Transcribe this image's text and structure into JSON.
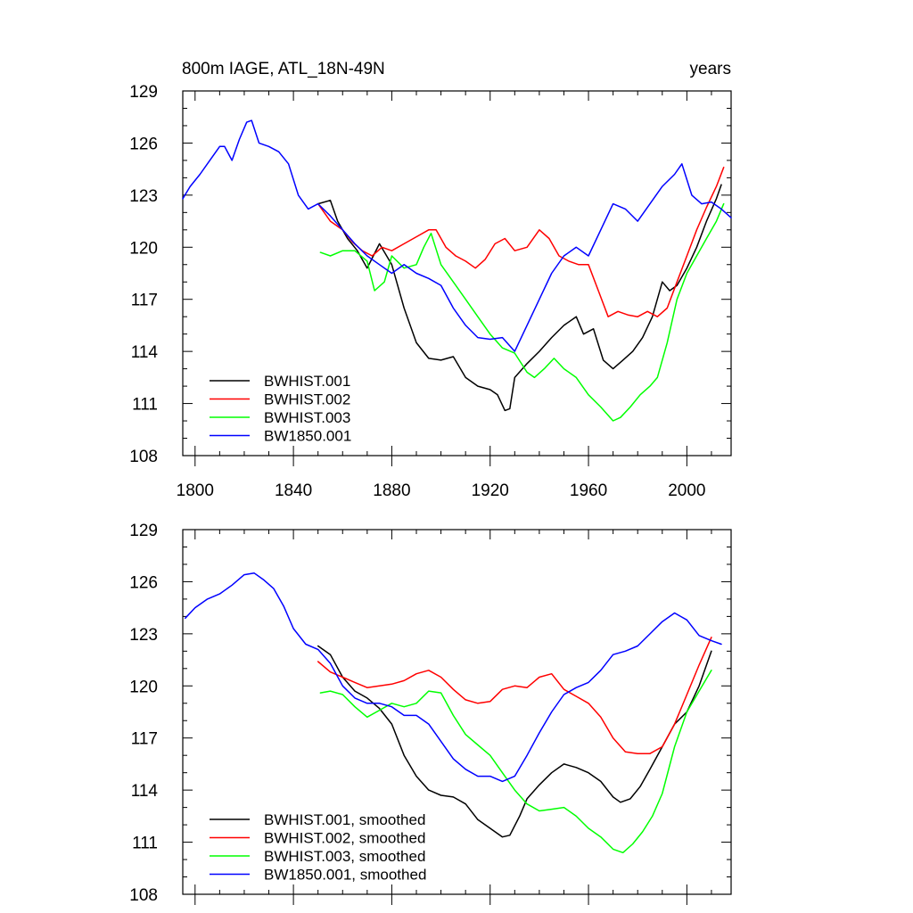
{
  "chart_data": [
    {
      "type": "line",
      "title": "800m IAGE, ATL_18N-49N",
      "units": "years",
      "xlim": [
        1795,
        2018
      ],
      "ylim": [
        108,
        129
      ],
      "xticks": [
        1800,
        1840,
        1880,
        1920,
        1960,
        2000
      ],
      "yticks": [
        108,
        111,
        114,
        117,
        120,
        123,
        126,
        129
      ],
      "legend_position": "lower-left",
      "series": [
        {
          "name": "BWHIST.001",
          "color": "#000000",
          "x": [
            1850,
            1855,
            1858,
            1862,
            1866,
            1870,
            1875,
            1880,
            1885,
            1890,
            1895,
            1900,
            1905,
            1910,
            1915,
            1920,
            1923,
            1926,
            1928,
            1930,
            1935,
            1940,
            1945,
            1950,
            1955,
            1958,
            1962,
            1966,
            1970,
            1974,
            1978,
            1982,
            1986,
            1990,
            1993,
            1996,
            2000,
            2004,
            2008,
            2012,
            2014
          ],
          "y": [
            122.5,
            122.7,
            121.5,
            120.5,
            119.8,
            118.8,
            120.2,
            119.0,
            116.5,
            114.5,
            113.6,
            113.5,
            113.7,
            112.5,
            112.0,
            111.8,
            111.5,
            110.6,
            110.7,
            112.5,
            113.3,
            114.0,
            114.8,
            115.5,
            116.0,
            115.0,
            115.3,
            113.5,
            113.0,
            113.5,
            114.0,
            114.8,
            116.0,
            118.0,
            117.5,
            117.8,
            118.8,
            120.0,
            121.5,
            122.8,
            123.6
          ]
        },
        {
          "name": "BWHIST.002",
          "color": "#ff0000",
          "x": [
            1850,
            1855,
            1860,
            1864,
            1868,
            1872,
            1876,
            1880,
            1885,
            1890,
            1895,
            1898,
            1902,
            1906,
            1910,
            1914,
            1918,
            1922,
            1926,
            1930,
            1935,
            1940,
            1944,
            1948,
            1952,
            1956,
            1960,
            1964,
            1968,
            1972,
            1976,
            1980,
            1984,
            1988,
            1992,
            1996,
            2000,
            2004,
            2008,
            2012,
            2015
          ],
          "y": [
            122.5,
            121.5,
            121.0,
            120.3,
            119.8,
            119.5,
            120.0,
            119.8,
            120.2,
            120.6,
            121.0,
            121.0,
            120.0,
            119.5,
            119.2,
            118.8,
            119.3,
            120.2,
            120.5,
            119.8,
            120.0,
            121.0,
            120.5,
            119.5,
            119.2,
            119.0,
            119.0,
            117.5,
            116.0,
            116.3,
            116.1,
            116.0,
            116.3,
            116.0,
            116.5,
            118.0,
            119.5,
            121.0,
            122.3,
            123.5,
            124.6
          ]
        },
        {
          "name": "BWHIST.003",
          "color": "#00ff00",
          "x": [
            1851,
            1855,
            1860,
            1865,
            1870,
            1873,
            1877,
            1880,
            1885,
            1890,
            1893,
            1896,
            1900,
            1905,
            1910,
            1915,
            1920,
            1925,
            1930,
            1935,
            1938,
            1942,
            1946,
            1950,
            1955,
            1960,
            1965,
            1970,
            1973,
            1977,
            1981,
            1985,
            1988,
            1992,
            1996,
            2000,
            2004,
            2008,
            2012,
            2015
          ],
          "y": [
            119.7,
            119.5,
            119.8,
            119.8,
            119.2,
            117.5,
            118.0,
            119.5,
            118.8,
            119.0,
            120.0,
            120.8,
            119.0,
            118.0,
            117.0,
            116.0,
            115.0,
            114.2,
            113.9,
            112.8,
            112.5,
            113.0,
            113.6,
            113.0,
            112.5,
            111.5,
            110.8,
            110.0,
            110.2,
            110.8,
            111.5,
            112.0,
            112.5,
            114.5,
            117.0,
            118.5,
            119.5,
            120.5,
            121.5,
            122.5
          ]
        },
        {
          "name": "BW1850.001",
          "color": "#0000ff",
          "x": [
            1795,
            1798,
            1802,
            1806,
            1810,
            1812,
            1815,
            1818,
            1821,
            1823,
            1826,
            1830,
            1834,
            1838,
            1842,
            1846,
            1850,
            1855,
            1860,
            1865,
            1870,
            1875,
            1880,
            1885,
            1890,
            1895,
            1900,
            1905,
            1910,
            1915,
            1920,
            1925,
            1930,
            1935,
            1940,
            1945,
            1950,
            1955,
            1960,
            1965,
            1970,
            1975,
            1980,
            1985,
            1990,
            1995,
            1998,
            2002,
            2006,
            2010,
            2014,
            2018
          ],
          "y": [
            122.8,
            123.5,
            124.2,
            125.0,
            125.8,
            125.8,
            125.0,
            126.2,
            127.2,
            127.3,
            126.0,
            125.8,
            125.5,
            124.8,
            123.0,
            122.2,
            122.5,
            121.8,
            121.0,
            120.2,
            119.5,
            119.0,
            118.5,
            119.0,
            118.5,
            118.2,
            117.8,
            116.5,
            115.5,
            114.8,
            114.7,
            114.8,
            114.0,
            115.5,
            117.0,
            118.5,
            119.5,
            120.0,
            119.5,
            121.0,
            122.5,
            122.2,
            121.5,
            122.5,
            123.5,
            124.2,
            124.8,
            123.0,
            122.5,
            122.6,
            122.2,
            121.7
          ]
        }
      ]
    },
    {
      "type": "line",
      "xlim": [
        1795,
        2018
      ],
      "ylim": [
        108,
        129
      ],
      "xticks": [
        1800,
        1840,
        1880,
        1920,
        1960,
        2000
      ],
      "yticks": [
        108,
        111,
        114,
        117,
        120,
        123,
        126,
        129
      ],
      "legend_position": "lower-left",
      "series": [
        {
          "name": "BWHIST.001, smoothed",
          "color": "#000000",
          "x": [
            1850,
            1855,
            1860,
            1865,
            1870,
            1875,
            1880,
            1885,
            1890,
            1895,
            1900,
            1905,
            1910,
            1915,
            1920,
            1925,
            1928,
            1932,
            1935,
            1940,
            1945,
            1950,
            1955,
            1960,
            1965,
            1970,
            1973,
            1977,
            1981,
            1985,
            1990,
            1995,
            2000,
            2005,
            2010
          ],
          "y": [
            122.3,
            121.8,
            120.5,
            119.7,
            119.3,
            118.7,
            117.8,
            116.0,
            114.8,
            114.0,
            113.7,
            113.6,
            113.2,
            112.3,
            111.8,
            111.3,
            111.4,
            112.5,
            113.5,
            114.3,
            115.0,
            115.5,
            115.3,
            115.0,
            114.5,
            113.6,
            113.3,
            113.5,
            114.2,
            115.2,
            116.5,
            117.8,
            118.5,
            120.0,
            122.0
          ]
        },
        {
          "name": "BWHIST.002, smoothed",
          "color": "#ff0000",
          "x": [
            1850,
            1855,
            1860,
            1865,
            1870,
            1875,
            1880,
            1885,
            1890,
            1895,
            1900,
            1905,
            1910,
            1915,
            1920,
            1925,
            1930,
            1935,
            1940,
            1945,
            1950,
            1955,
            1960,
            1965,
            1970,
            1975,
            1980,
            1985,
            1990,
            1995,
            2000,
            2005,
            2010
          ],
          "y": [
            121.4,
            120.8,
            120.5,
            120.2,
            119.9,
            120.0,
            120.1,
            120.3,
            120.7,
            120.9,
            120.5,
            119.8,
            119.2,
            119.0,
            119.1,
            119.8,
            120.0,
            119.9,
            120.5,
            120.7,
            119.8,
            119.4,
            119.0,
            118.2,
            117.0,
            116.2,
            116.1,
            116.1,
            116.5,
            117.8,
            119.5,
            121.2,
            122.8
          ]
        },
        {
          "name": "BWHIST.003, smoothed",
          "color": "#00ff00",
          "x": [
            1851,
            1855,
            1860,
            1865,
            1870,
            1875,
            1880,
            1885,
            1890,
            1895,
            1900,
            1905,
            1910,
            1915,
            1920,
            1925,
            1930,
            1935,
            1940,
            1945,
            1950,
            1955,
            1960,
            1965,
            1970,
            1974,
            1978,
            1982,
            1986,
            1990,
            1995,
            2000,
            2005,
            2010
          ],
          "y": [
            119.6,
            119.7,
            119.5,
            118.8,
            118.2,
            118.6,
            119.0,
            118.8,
            119.0,
            119.7,
            119.6,
            118.3,
            117.2,
            116.6,
            116.0,
            115.0,
            114.0,
            113.2,
            112.8,
            112.9,
            113.0,
            112.5,
            111.8,
            111.3,
            110.6,
            110.4,
            110.9,
            111.6,
            112.5,
            113.8,
            116.5,
            118.5,
            119.7,
            120.9
          ]
        },
        {
          "name": "BW1850.001, smoothed",
          "color": "#0000ff",
          "x": [
            1796,
            1800,
            1805,
            1810,
            1815,
            1820,
            1824,
            1828,
            1832,
            1836,
            1840,
            1845,
            1850,
            1855,
            1860,
            1865,
            1870,
            1875,
            1880,
            1885,
            1890,
            1895,
            1900,
            1905,
            1910,
            1915,
            1920,
            1925,
            1930,
            1935,
            1940,
            1945,
            1950,
            1955,
            1960,
            1965,
            1970,
            1975,
            1980,
            1985,
            1990,
            1995,
            2000,
            2005,
            2010,
            2014
          ],
          "y": [
            123.9,
            124.5,
            125.0,
            125.3,
            125.8,
            126.4,
            126.5,
            126.1,
            125.6,
            124.6,
            123.3,
            122.4,
            122.1,
            121.3,
            120.0,
            119.3,
            119.0,
            119.0,
            118.8,
            118.3,
            118.3,
            117.8,
            116.8,
            115.8,
            115.2,
            114.8,
            114.8,
            114.5,
            114.8,
            116.0,
            117.3,
            118.5,
            119.5,
            119.9,
            120.2,
            120.9,
            121.8,
            122.0,
            122.3,
            123.0,
            123.7,
            124.2,
            123.8,
            122.9,
            122.6,
            122.4
          ]
        }
      ]
    }
  ]
}
